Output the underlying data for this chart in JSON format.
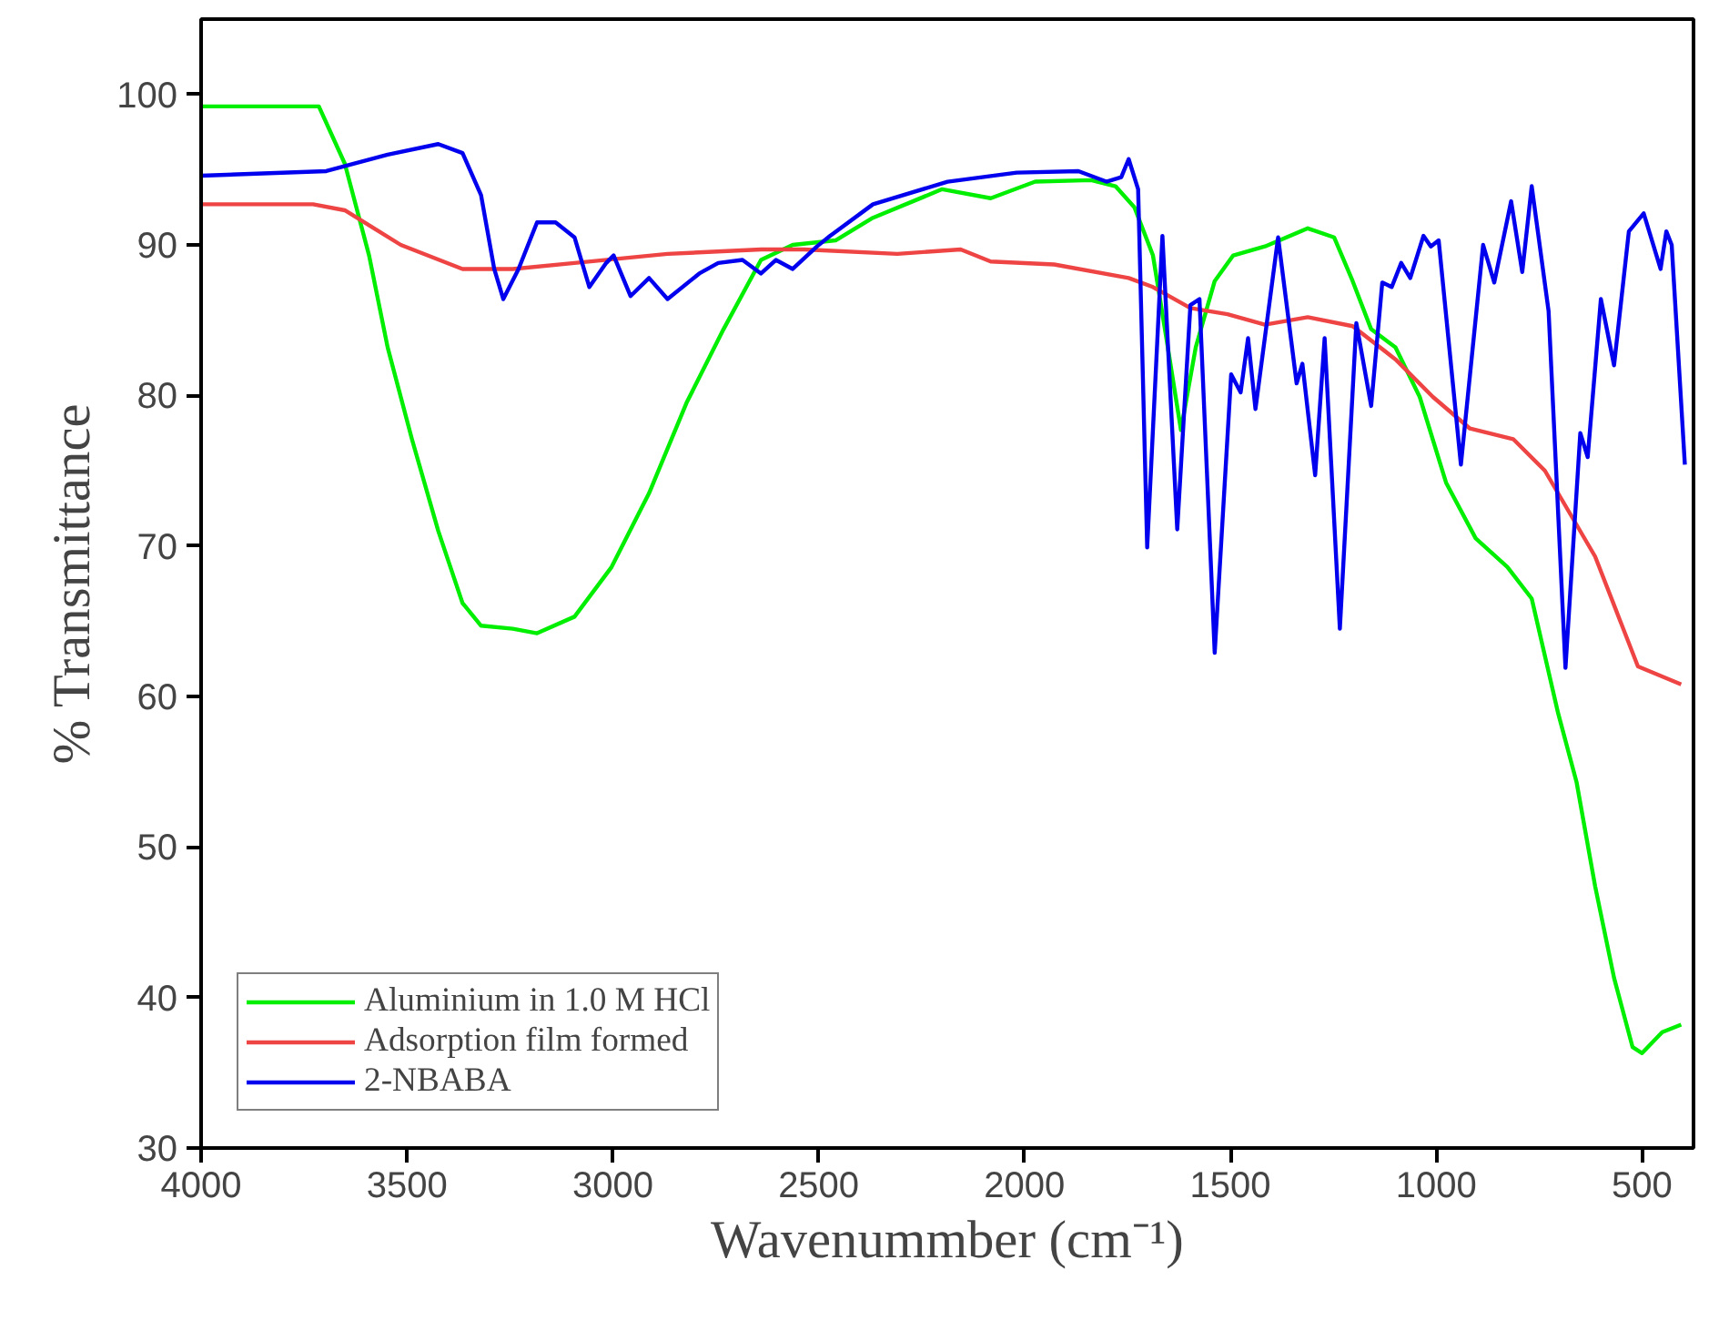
{
  "chart_data": {
    "type": "line",
    "xlabel": "Wavenummber (cm⁻¹)",
    "ylabel": "% Transmittance",
    "xlim": [
      4000,
      375
    ],
    "ylim": [
      30,
      105
    ],
    "xticks": [
      4000,
      3500,
      3000,
      2500,
      2000,
      1500,
      1000,
      500
    ],
    "yticks": [
      30,
      40,
      50,
      60,
      70,
      80,
      90,
      100
    ],
    "grid": false,
    "legend": "bottom left",
    "line_style": "solid",
    "marker": "none",
    "series": [
      {
        "name": "Aluminium in 1.0 M HCl",
        "color": "#00ee00",
        "x": [
          4000,
          3714,
          3651,
          3592,
          3547,
          3488,
          3424,
          3365,
          3320,
          3243,
          3184,
          3093,
          3003,
          2912,
          2821,
          2731,
          2640,
          2563,
          2459,
          2368,
          2200,
          2082,
          1974,
          1838,
          1779,
          1733,
          1688,
          1656,
          1620,
          1584,
          1538,
          1493,
          1416,
          1312,
          1248,
          1203,
          1158,
          1099,
          1040,
          976,
          904,
          827,
          768,
          704,
          659,
          614,
          568,
          523,
          500,
          451,
          405
        ],
        "values": [
          99.2,
          99.2,
          95.4,
          89.3,
          83.2,
          77.1,
          71.0,
          66.2,
          64.7,
          64.5,
          64.2,
          65.3,
          68.6,
          73.5,
          79.5,
          84.4,
          89.0,
          90.0,
          90.3,
          91.8,
          93.7,
          93.1,
          94.2,
          94.3,
          93.9,
          92.5,
          89.3,
          83.9,
          77.7,
          83.2,
          87.6,
          89.3,
          89.9,
          91.1,
          90.5,
          87.6,
          84.4,
          83.2,
          79.9,
          74.2,
          70.5,
          68.6,
          66.5,
          58.9,
          54.3,
          47.4,
          41.3,
          36.7,
          36.3,
          37.7,
          38.2
        ]
      },
      {
        "name": "Adsorption film formed",
        "color": "#ee4444",
        "x": [
          4000,
          3728,
          3651,
          3515,
          3365,
          3243,
          3093,
          2867,
          2640,
          2536,
          2309,
          2155,
          2082,
          1928,
          1747,
          1688,
          1597,
          1507,
          1416,
          1312,
          1203,
          1099,
          1008,
          918,
          813,
          736,
          614,
          510,
          405
        ],
        "values": [
          92.7,
          92.7,
          92.3,
          90.0,
          88.4,
          88.4,
          88.8,
          89.4,
          89.7,
          89.7,
          89.4,
          89.7,
          88.9,
          88.7,
          87.8,
          87.2,
          85.8,
          85.4,
          84.7,
          85.2,
          84.6,
          82.4,
          79.9,
          77.8,
          77.1,
          75.0,
          69.3,
          62.0,
          60.8
        ]
      },
      {
        "name": "2-NBABA",
        "color": "#0000ee",
        "x": [
          4000,
          3696,
          3547,
          3424,
          3365,
          3320,
          3288,
          3266,
          3229,
          3184,
          3139,
          3093,
          3057,
          3016,
          2998,
          2957,
          2912,
          2867,
          2790,
          2744,
          2685,
          2640,
          2604,
          2563,
          2504,
          2472,
          2368,
          2187,
          2019,
          1869,
          1801,
          1765,
          1747,
          1724,
          1702,
          1665,
          1629,
          1597,
          1575,
          1538,
          1498,
          1475,
          1457,
          1439,
          1384,
          1339,
          1325,
          1294,
          1271,
          1234,
          1194,
          1158,
          1131,
          1108,
          1085,
          1063,
          1031,
          1013,
          994,
          940,
          886,
          859,
          818,
          791,
          768,
          727,
          686,
          650,
          632,
          600,
          568,
          532,
          496,
          455,
          441,
          428,
          396
        ],
        "values": [
          94.6,
          94.9,
          96.0,
          96.7,
          96.1,
          93.3,
          88.4,
          86.4,
          88.4,
          91.5,
          91.5,
          90.5,
          87.2,
          88.8,
          89.3,
          86.6,
          87.8,
          86.4,
          88.1,
          88.8,
          89.0,
          88.1,
          89.0,
          88.4,
          89.9,
          90.6,
          92.7,
          94.2,
          94.8,
          94.9,
          94.2,
          94.5,
          95.7,
          93.7,
          69.9,
          90.6,
          71.1,
          86.0,
          86.4,
          62.9,
          81.4,
          80.2,
          83.8,
          79.1,
          90.5,
          80.8,
          82.1,
          74.7,
          83.8,
          64.5,
          84.8,
          79.3,
          87.5,
          87.2,
          88.8,
          87.8,
          90.6,
          89.9,
          90.3,
          75.4,
          90.0,
          87.5,
          92.9,
          88.2,
          93.9,
          85.6,
          61.9,
          77.5,
          75.9,
          86.4,
          82.0,
          90.9,
          92.1,
          88.4,
          90.9,
          90.0,
          75.4
        ]
      }
    ]
  }
}
